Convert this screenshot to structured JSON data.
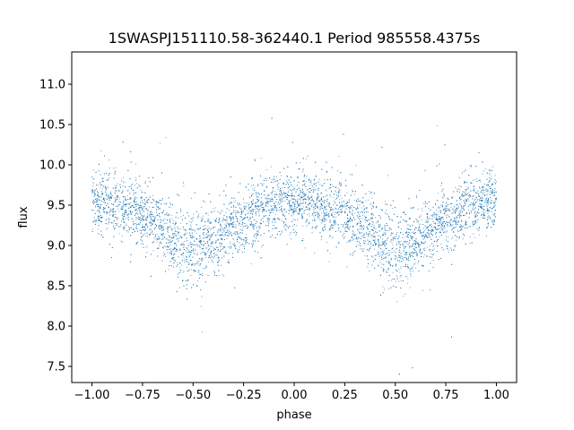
{
  "chart_data": {
    "type": "scatter",
    "title": "1SWASPJ151110.58-362440.1 Period 985558.4375s",
    "xlabel": "phase",
    "ylabel": "flux",
    "xlim": [
      -1.1,
      1.1
    ],
    "ylim": [
      7.3,
      11.4
    ],
    "x_ticks": [
      -1.0,
      -0.75,
      -0.5,
      -0.25,
      0.0,
      0.25,
      0.5,
      0.75,
      1.0
    ],
    "x_tick_labels": [
      "−1.00",
      "−0.75",
      "−0.50",
      "−0.25",
      "0.00",
      "0.25",
      "0.50",
      "0.75",
      "1.00"
    ],
    "y_ticks": [
      7.5,
      8.0,
      8.5,
      9.0,
      9.5,
      10.0,
      10.5,
      11.0
    ],
    "y_tick_labels": [
      "7.5",
      "8.0",
      "8.5",
      "9.0",
      "9.5",
      "10.0",
      "10.5",
      "11.0"
    ],
    "grid": false,
    "series": [
      {
        "color": "#1f77b4",
        "x": [
          -1.0,
          -0.95,
          -0.9,
          -0.85,
          -0.8,
          -0.75,
          -0.7,
          -0.65,
          -0.6,
          -0.55,
          -0.5,
          -0.45,
          -0.4,
          -0.35,
          -0.3,
          -0.25,
          -0.2,
          -0.15,
          -0.1,
          -0.05,
          0.0,
          0.05,
          0.1,
          0.15,
          0.2,
          0.25,
          0.3,
          0.35,
          0.4,
          0.45,
          0.5,
          0.55,
          0.6,
          0.65,
          0.7,
          0.75,
          0.8,
          0.85,
          0.9,
          0.95,
          1.0
        ],
        "y": [
          9.55,
          9.55,
          9.5,
          9.45,
          9.45,
          9.4,
          9.3,
          9.25,
          9.1,
          9.0,
          8.95,
          9.0,
          9.05,
          9.15,
          9.25,
          9.3,
          9.4,
          9.45,
          9.5,
          9.55,
          9.55,
          9.55,
          9.5,
          9.45,
          9.45,
          9.4,
          9.3,
          9.25,
          9.1,
          9.0,
          8.95,
          9.0,
          9.05,
          9.15,
          9.25,
          9.3,
          9.4,
          9.45,
          9.5,
          9.55,
          9.55
        ],
        "spread": [
          0.35,
          0.35,
          0.35,
          0.35,
          0.35,
          0.35,
          0.35,
          0.38,
          0.4,
          0.42,
          0.42,
          0.42,
          0.4,
          0.38,
          0.35,
          0.35,
          0.35,
          0.35,
          0.35,
          0.35,
          0.35,
          0.35,
          0.35,
          0.35,
          0.35,
          0.35,
          0.35,
          0.38,
          0.4,
          0.42,
          0.42,
          0.42,
          0.4,
          0.38,
          0.35,
          0.35,
          0.35,
          0.35,
          0.35,
          0.35,
          0.35
        ]
      }
    ]
  }
}
